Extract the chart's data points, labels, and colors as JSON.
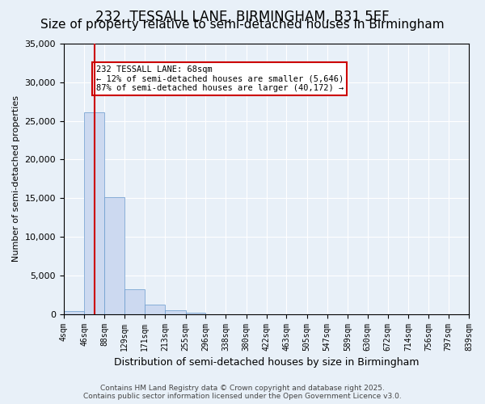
{
  "title": "232, TESSALL LANE, BIRMINGHAM, B31 5EF",
  "subtitle": "Size of property relative to semi-detached houses in Birmingham",
  "xlabel": "Distribution of semi-detached houses by size in Birmingham",
  "ylabel": "Number of semi-detached properties",
  "annotation_title": "232 TESSALL LANE: 68sqm",
  "annotation_line2": "← 12% of semi-detached houses are smaller (5,646)",
  "annotation_line3": "87% of semi-detached houses are larger (40,172) →",
  "footer_line1": "Contains HM Land Registry data © Crown copyright and database right 2025.",
  "footer_line2": "Contains public sector information licensed under the Open Government Licence v3.0.",
  "property_size": 68,
  "bin_edges": [
    4,
    46,
    88,
    129,
    171,
    213,
    255,
    296,
    338,
    380,
    422,
    463,
    505,
    547,
    589,
    630,
    672,
    714,
    756,
    797,
    839
  ],
  "bin_labels": [
    "4sqm",
    "46sqm",
    "88sqm",
    "129sqm",
    "171sqm",
    "213sqm",
    "255sqm",
    "296sqm",
    "338sqm",
    "380sqm",
    "422sqm",
    "463sqm",
    "505sqm",
    "547sqm",
    "589sqm",
    "630sqm",
    "672sqm",
    "714sqm",
    "756sqm",
    "797sqm",
    "839sqm"
  ],
  "counts": [
    350,
    26100,
    15100,
    3200,
    1200,
    450,
    200,
    0,
    0,
    0,
    0,
    0,
    0,
    0,
    0,
    0,
    0,
    0,
    0,
    0
  ],
  "bar_color": "#ccd9f0",
  "bar_edge_color": "#6699cc",
  "vline_color": "#cc0000",
  "vline_x": 68,
  "annotation_box_color": "#ffffff",
  "annotation_box_edge": "#cc0000",
  "background_color": "#e8f0f8",
  "ylim": [
    0,
    35000
  ],
  "yticks": [
    0,
    5000,
    10000,
    15000,
    20000,
    25000,
    30000,
    35000
  ],
  "grid_color": "#ffffff",
  "title_fontsize": 12,
  "subtitle_fontsize": 11
}
